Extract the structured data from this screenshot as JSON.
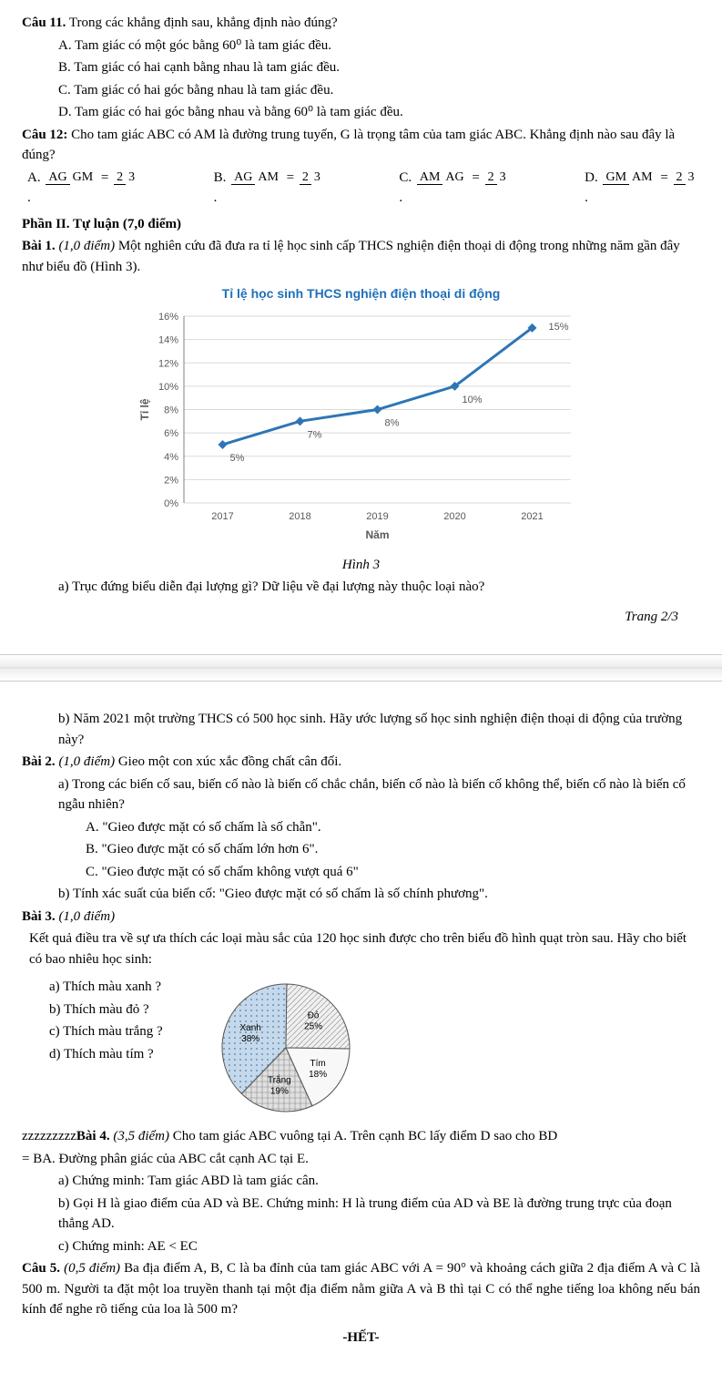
{
  "q11": {
    "title": "Câu 11.",
    "prompt": "Trong các khẳng định sau, khẳng định nào đúng?",
    "A": "A. Tam giác có một góc bằng 60⁰ là tam giác đều.",
    "B": "B. Tam giác có hai cạnh bằng nhau là tam giác đều.",
    "C": "C. Tam giác có hai góc bằng nhau là tam giác đều.",
    "D": "D. Tam giác có hai góc bằng nhau và bằng 60⁰ là tam giác đều."
  },
  "q12": {
    "title": "Câu 12:",
    "prompt": "Cho tam giác ABC có AM là đường trung tuyến, G là trọng tâm của tam giác ABC. Khẳng định nào sau đây là đúng?",
    "opts": {
      "A": {
        "pre": "A.",
        "n": "AG",
        "d": "GM",
        "n2": "2",
        "d2": "3"
      },
      "B": {
        "pre": "B.",
        "n": "AG",
        "d": "AM",
        "n2": "2",
        "d2": "3"
      },
      "C": {
        "pre": "C.",
        "n": "AM",
        "d": "AG",
        "n2": "2",
        "d2": "3"
      },
      "D": {
        "pre": "D.",
        "n": "GM",
        "d": "AM",
        "n2": "2",
        "d2": "3"
      }
    }
  },
  "part2": {
    "title": "Phần II. Tự luận (7,0 điểm)"
  },
  "b1": {
    "title": "Bài 1.",
    "pts": "(1,0 điểm)",
    "text": "Một nghiên cứu đã đưa ra tỉ lệ học sinh cấp THCS nghiện điện thoại di động trong những năm gần đây như biểu đồ (Hình 3).",
    "hinh": "Hình 3",
    "a": "a) Trục đứng biểu diễn đại lượng gì? Dữ liệu về đại lượng này thuộc loại nào?",
    "b": "b) Năm 2021 một trường THCS có 500 học sinh. Hãy ước lượng số học sinh nghiện điện thoại di động của trường này?"
  },
  "chart": {
    "type": "line",
    "title": "Tỉ lệ học sinh THCS nghiện điện thoại di động",
    "xlabel": "Năm",
    "ylabel": "Tỉ lệ",
    "categories": [
      "2017",
      "2018",
      "2019",
      "2020",
      "2021"
    ],
    "values": [
      5,
      7,
      8,
      10,
      15
    ],
    "value_labels": [
      "5%",
      "7%",
      "8%",
      "10%",
      "15%"
    ],
    "yticks": [
      0,
      2,
      4,
      6,
      8,
      10,
      12,
      14,
      16
    ],
    "ytick_labels": [
      "0%",
      "2%",
      "4%",
      "6%",
      "8%",
      "10%",
      "12%",
      "14%",
      "16%"
    ],
    "ylim": [
      0,
      16
    ],
    "line_color": "#2e75b6",
    "marker_color": "#2e75b6",
    "grid_color": "#d9d9d9",
    "axis_color": "#808080",
    "background": "#ffffff",
    "label_color": "#595959",
    "title_color": "#1f6fb8",
    "font_size_axis": 11,
    "font_size_label": 11,
    "line_width": 3,
    "marker_size": 5
  },
  "pagenum": "Trang 2/3",
  "b2": {
    "title": "Bài 2.",
    "pts": "(1,0 điểm)",
    "intro": "Gieo một con xúc xắc đồng chất cân đối.",
    "a": "a) Trong các biến cố sau, biến cố nào là biến cố chắc chắn, biến cố nào là biến cố không thể, biến cố nào là biến cố ngẫu nhiên?",
    "A": "A. \"Gieo được mặt có số chấm là số chẵn\".",
    "B": "B. \"Gieo được mặt có số chấm lớn hơn 6\".",
    "C": "C. \"Gieo được mặt có số chấm không vượt quá 6\"",
    "b": "b) Tính xác suất của biến cố: \"Gieo được mặt có số chấm là số chính phương\"."
  },
  "b3": {
    "title": "Bài 3.",
    "pts": "(1,0 điểm)",
    "intro": "Kết quả điều tra về sự ưa thích các loại màu sắc của 120 học sinh được cho trên biểu đồ hình quạt tròn sau. Hãy cho biết có bao nhiêu học sinh:",
    "a": "a)  Thích màu xanh ?",
    "b": "b)  Thích màu đỏ ?",
    "c": "c)  Thích màu trắng ?",
    "d": "d)  Thích màu tím ?"
  },
  "pie": {
    "type": "pie",
    "slices": [
      {
        "label": "Xanh",
        "sub": "38%",
        "value": 38,
        "color": "#a8c5e0",
        "pattern": "dots"
      },
      {
        "label": "Đỏ",
        "sub": "25%",
        "value": 25,
        "color": "#e8e8e8",
        "pattern": "diag"
      },
      {
        "label": "Tím",
        "sub": "18%",
        "value": 18,
        "color": "#f5f5f5",
        "pattern": "none"
      },
      {
        "label": "Trắng",
        "sub": "19%",
        "value": 19,
        "color": "#d0d0d0",
        "pattern": "grid"
      }
    ],
    "border_color": "#555555",
    "text_color": "#000000",
    "font_size": 10,
    "radius": 70
  },
  "b4": {
    "prefix": "zzzzzzzzz",
    "title": "Bài 4.",
    "pts": "(3,5 điểm)",
    "l1": "Cho tam giác ABC vuông tại A. Trên cạnh BC lấy điểm D sao cho BD",
    "l2": "= BA. Đường phân giác của   ABC  cắt cạnh AC tại E.",
    "a": "a) Chứng minh: Tam giác ABD là tam giác cân.",
    "b": "b) Gọi H là giao điểm của AD và BE. Chứng minh: H là trung điểm của AD và BE là đường trung trực của đoạn thẳng AD.",
    "c": "c) Chứng minh: AE < EC"
  },
  "c5": {
    "title": "Câu 5.",
    "pts": "(0,5 điểm)",
    "text": "Ba địa điểm A, B, C là ba đỉnh của tam giác ABC với A = 90° và khoảng cách giữa 2 địa điểm A và C là 500 m. Người ta đặt một loa truyền thanh tại một địa điểm nằm giữa A và B thì tại C có thể nghe tiếng loa không nếu bán kính để nghe rõ tiếng của loa là 500 m?"
  },
  "het": "-HẾT-"
}
